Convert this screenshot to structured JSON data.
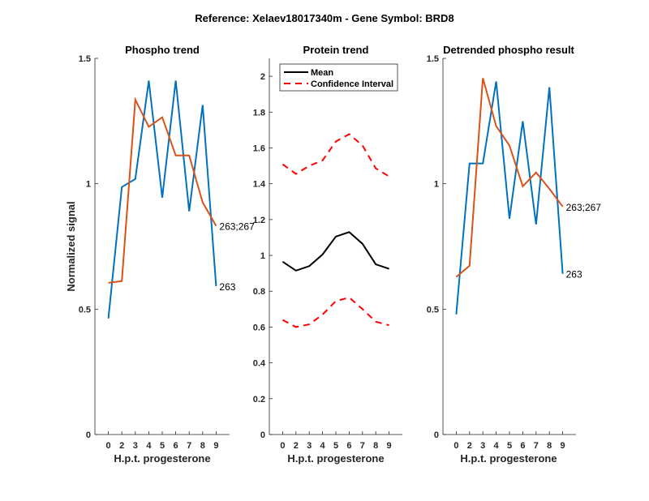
{
  "figure": {
    "suptitle": "Reference:  Xelaev18017340m - Gene Symbol:  BRD8"
  },
  "colors": {
    "blue": "#0072BD",
    "orange": "#D95319",
    "black": "#000000",
    "red": "#FF0000",
    "axis": "#262626"
  },
  "chart_data": [
    {
      "id": "phospho",
      "type": "line",
      "title": "Phospho trend",
      "xlabel": "H.p.t. progesterone",
      "ylabel": "Normalized signal",
      "categories": [
        "0",
        "2",
        "3",
        "4",
        "5",
        "6",
        "7",
        "8",
        "9"
      ],
      "ylim": [
        0,
        1.5
      ],
      "yticks": [
        0,
        0.5,
        1,
        1.5
      ],
      "ytick_labels": [
        "0",
        "0.5",
        "1",
        "1.5"
      ],
      "grid": false,
      "series": [
        {
          "name": "263",
          "color": "blue",
          "values": [
            0.463,
            0.987,
            1.019,
            1.411,
            0.945,
            1.411,
            0.89,
            1.314,
            0.592
          ]
        },
        {
          "name": "263;267",
          "color": "orange",
          "values": [
            0.605,
            0.612,
            1.335,
            1.227,
            1.265,
            1.113,
            1.113,
            0.926,
            0.832
          ]
        }
      ]
    },
    {
      "id": "protein",
      "type": "line",
      "title": "Protein trend",
      "xlabel": "H.p.t. progesterone",
      "ylabel": "",
      "categories": [
        "0",
        "2",
        "3",
        "4",
        "5",
        "6",
        "7",
        "8",
        "9"
      ],
      "ylim": [
        0,
        2.1
      ],
      "yticks": [
        0,
        0.2,
        0.4,
        0.6,
        0.8,
        1,
        1.2,
        1.4,
        1.6,
        1.8,
        2
      ],
      "ytick_labels": [
        "0",
        "0.2",
        "0.4",
        "0.6",
        "0.8",
        "1",
        "1.2",
        "1.4",
        "1.6",
        "1.8",
        "2"
      ],
      "grid": false,
      "legend": {
        "placement": "top-left",
        "entries": [
          "Mean",
          "Confidence Interval"
        ]
      },
      "series": [
        {
          "name": "Mean",
          "color": "black",
          "style": "solid",
          "values": [
            0.965,
            0.915,
            0.94,
            1.005,
            1.105,
            1.13,
            1.065,
            0.95,
            0.925
          ]
        },
        {
          "name": "Confidence Interval (upper)",
          "color": "red",
          "style": "dashed",
          "values": [
            1.509,
            1.455,
            1.5,
            1.53,
            1.636,
            1.677,
            1.614,
            1.486,
            1.441
          ]
        },
        {
          "name": "Confidence Interval (lower)",
          "color": "red",
          "style": "dashed",
          "values": [
            0.64,
            0.6,
            0.615,
            0.67,
            0.745,
            0.765,
            0.7,
            0.63,
            0.61
          ]
        }
      ]
    },
    {
      "id": "detrended",
      "type": "line",
      "title": "Detrended phospho result",
      "xlabel": "H.p.t. progesterone",
      "ylabel": "",
      "categories": [
        "0",
        "2",
        "3",
        "4",
        "5",
        "6",
        "7",
        "8",
        "9"
      ],
      "ylim": [
        0,
        1.5
      ],
      "yticks": [
        0,
        0.5,
        1,
        1.5
      ],
      "ytick_labels": [
        "0",
        "0.5",
        "1",
        "1.5"
      ],
      "grid": false,
      "series": [
        {
          "name": "263",
          "color": "blue",
          "values": [
            0.479,
            1.081,
            1.081,
            1.408,
            0.861,
            1.249,
            0.838,
            1.385,
            0.641
          ]
        },
        {
          "name": "263;267",
          "color": "orange",
          "values": [
            0.628,
            0.673,
            1.421,
            1.23,
            1.152,
            0.99,
            1.045,
            0.98,
            0.909
          ]
        }
      ]
    }
  ]
}
